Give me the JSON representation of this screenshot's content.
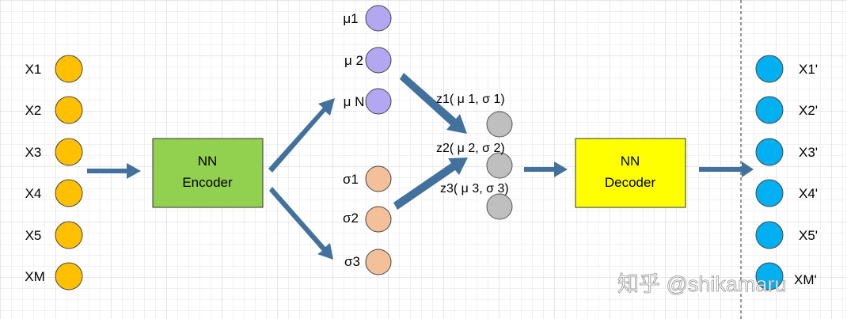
{
  "inputs": [
    "X1",
    "X2",
    "X3",
    "X4",
    "X5",
    "XM"
  ],
  "encoder": {
    "line1": "NN",
    "line2": "Encoder"
  },
  "mu": [
    "μ1",
    "μ 2",
    "μ N"
  ],
  "sigma": [
    "σ1",
    "σ2",
    "σ3"
  ],
  "z": [
    "z1( μ 1,  σ 1)",
    "z2( μ 2,  σ 2)",
    "z3( μ 3,  σ 3)"
  ],
  "decoder": {
    "line1": "NN",
    "line2": "Decoder"
  },
  "outputs": [
    "X1'",
    "X2'",
    "X3'",
    "X4'",
    "X5'",
    "XM'"
  ],
  "watermark": "知乎 @shikamaru",
  "colors": {
    "input": "#ffc000",
    "encoder": "#92d050",
    "mu": "#b4a7f2",
    "sigma": "#f4c09a",
    "z": "#bfbfbf",
    "decoder": "#ffff00",
    "output": "#00b0f0",
    "arrow": "#41719c"
  }
}
